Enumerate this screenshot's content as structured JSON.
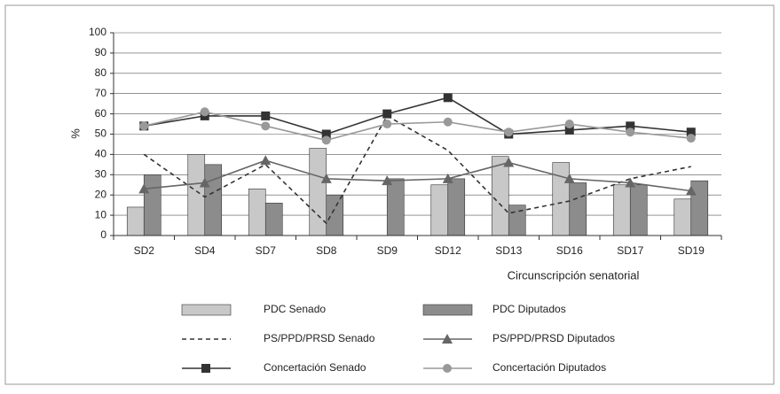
{
  "chart_data": {
    "type": "combo",
    "x_label": "Circunscripción senatorial",
    "y_label": "%",
    "categories": [
      "SD2",
      "SD4",
      "SD7",
      "SD8",
      "SD9",
      "SD12",
      "SD13",
      "SD16",
      "SD17",
      "SD19"
    ],
    "ylim": [
      0,
      100
    ],
    "yticks": [
      0,
      10,
      20,
      30,
      40,
      50,
      60,
      70,
      80,
      90,
      100
    ],
    "grid": true,
    "series": [
      {
        "name": "PDC Senado",
        "type": "bar",
        "color": "#c8c8c8",
        "values": [
          14,
          40,
          23,
          43,
          null,
          25,
          39,
          36,
          25,
          18
        ]
      },
      {
        "name": "PDC Diputados",
        "type": "bar",
        "color": "#8c8c8c",
        "values": [
          30,
          35,
          16,
          20,
          28,
          28,
          15,
          26,
          25,
          27
        ]
      },
      {
        "name": "PS/PPD/PRSD Senado",
        "type": "line",
        "color": "#333333",
        "dash": true,
        "values": [
          40,
          19,
          35,
          6,
          59,
          42,
          11,
          17,
          28,
          34
        ]
      },
      {
        "name": "PS/PPD/PRSD Diputados",
        "type": "line",
        "color": "#666666",
        "marker": "triangle",
        "values": [
          23,
          26,
          37,
          28,
          27,
          28,
          36,
          28,
          26,
          22
        ]
      },
      {
        "name": "Concertación Senado",
        "type": "line",
        "color": "#333333",
        "marker": "square",
        "values": [
          54,
          59,
          59,
          50,
          60,
          68,
          50,
          52,
          54,
          51
        ]
      },
      {
        "name": "Concertación Diputados",
        "type": "line",
        "color": "#999999",
        "marker": "circle",
        "values": [
          54,
          61,
          54,
          47,
          55,
          56,
          51,
          55,
          51,
          48
        ]
      }
    ]
  }
}
